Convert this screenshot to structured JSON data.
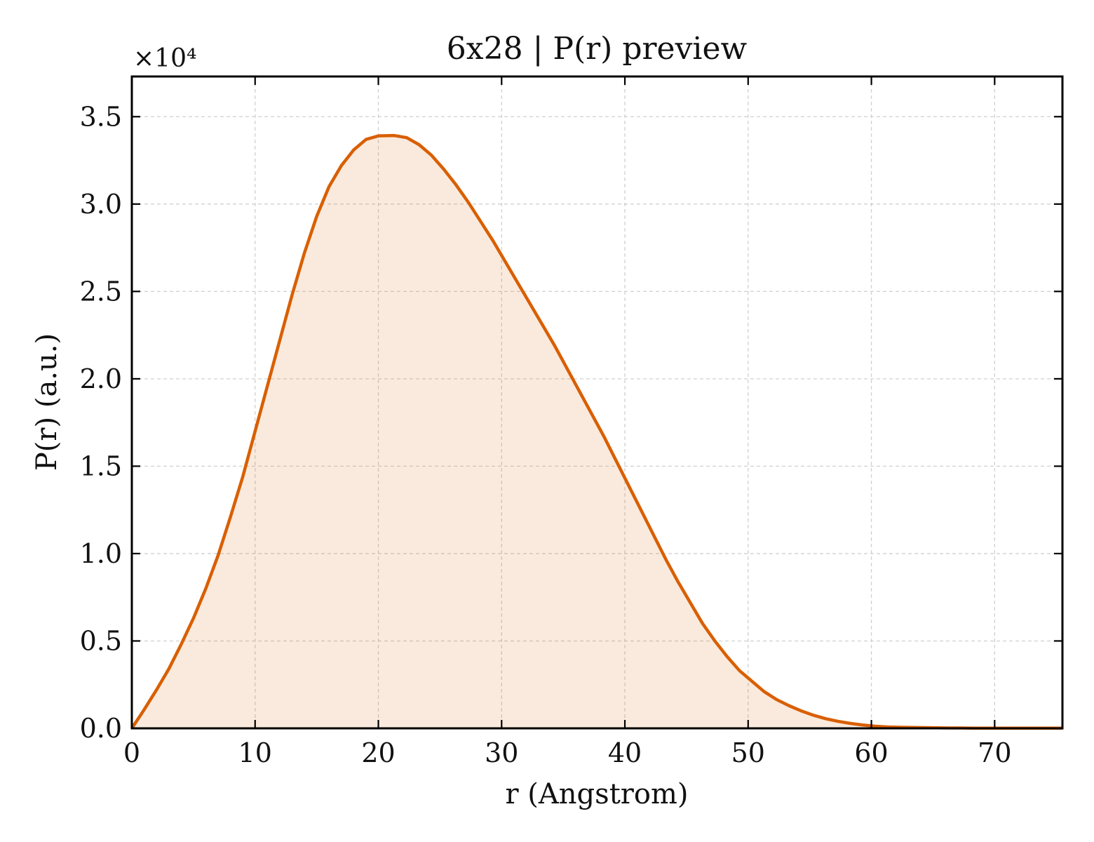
{
  "chart_data": {
    "type": "area",
    "title": "6x28 | P(r) preview",
    "xlabel": "r (Angstrom)",
    "ylabel": "P(r) (a.u.)",
    "y_multiplier_label": "×10⁴",
    "y_scale_factor": 10000,
    "xlim": [
      0,
      75.5
    ],
    "ylim": [
      0,
      3.73
    ],
    "x_ticks": [
      0,
      10,
      20,
      30,
      40,
      50,
      60,
      70
    ],
    "x_tick_labels": [
      "0",
      "10",
      "20",
      "30",
      "40",
      "50",
      "60",
      "70"
    ],
    "y_ticks": [
      0,
      0.5,
      1.0,
      1.5,
      2.0,
      2.5,
      3.0,
      3.5
    ],
    "y_tick_labels": [
      "0.0",
      "0.5",
      "1.0",
      "1.5",
      "2.0",
      "2.5",
      "3.0",
      "3.5"
    ],
    "grid": true,
    "line_color": "#d95f02",
    "fill_color": "#d95f02",
    "fill_opacity": 0.13,
    "series": [
      {
        "x": [
          0,
          1,
          2,
          3,
          4,
          5,
          6,
          7,
          8,
          9,
          10,
          11,
          12,
          13,
          14,
          15,
          16,
          17,
          18,
          19,
          20,
          21.3,
          22.3,
          23.3,
          24.3,
          25.3,
          26.3,
          27.3,
          28.3,
          29.3,
          30.3,
          31.3,
          32.3,
          33.3,
          34.3,
          35.3,
          36.3,
          37.3,
          38.3,
          39.3,
          40.3,
          41.3,
          42.3,
          43.3,
          44.3,
          45.3,
          46.3,
          47.3,
          48.3,
          49.3,
          50.3,
          51.3,
          52.3,
          53.3,
          54.3,
          55.3,
          56.3,
          57.3,
          58.3,
          59.3,
          60.3,
          61.3,
          62.3,
          63.3,
          64.3,
          65.3,
          66.3,
          67.3,
          68.3,
          69.3,
          70.3,
          71.3,
          72.3,
          73.3,
          74.3,
          75.5
        ],
        "y": [
          0.0,
          0.107,
          0.22,
          0.34,
          0.48,
          0.63,
          0.8,
          0.99,
          1.21,
          1.44,
          1.7,
          1.96,
          2.22,
          2.48,
          2.72,
          2.93,
          3.1,
          3.22,
          3.31,
          3.37,
          3.39,
          3.392,
          3.38,
          3.34,
          3.28,
          3.2,
          3.11,
          3.01,
          2.9,
          2.79,
          2.67,
          2.55,
          2.43,
          2.31,
          2.19,
          2.06,
          1.93,
          1.8,
          1.67,
          1.53,
          1.39,
          1.25,
          1.11,
          0.97,
          0.84,
          0.72,
          0.6,
          0.5,
          0.41,
          0.33,
          0.27,
          0.21,
          0.165,
          0.13,
          0.1,
          0.075,
          0.055,
          0.04,
          0.028,
          0.019,
          0.012,
          0.008,
          0.006,
          0.005,
          0.004,
          0.003,
          0.002,
          0.002,
          0.001,
          0.001,
          0.001,
          0.001,
          0.001,
          0.001,
          0.001,
          0.001
        ]
      }
    ]
  }
}
